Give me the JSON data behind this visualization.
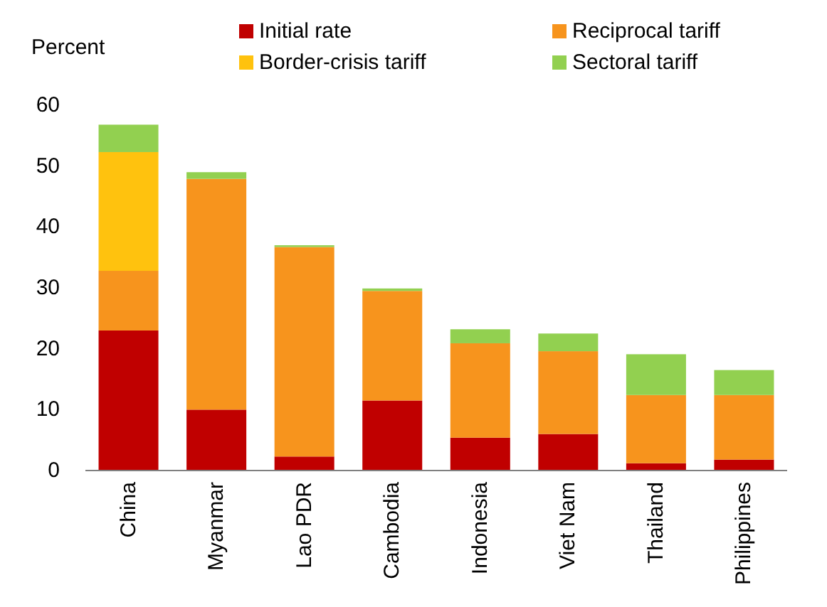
{
  "chart_data": {
    "type": "bar",
    "stacked": true,
    "ylabel": "Percent",
    "categories": [
      "China",
      "Myanmar",
      "Lao PDR",
      "Cambodia",
      "Indonesia",
      "Viet Nam",
      "Thailand",
      "Philippines"
    ],
    "series": [
      {
        "name": "Initial rate",
        "color": "#c00000",
        "values": [
          23.0,
          10.0,
          2.3,
          11.5,
          5.4,
          6.0,
          1.2,
          1.8
        ]
      },
      {
        "name": "Reciprocal tariff",
        "color": "#f7941d",
        "values": [
          9.8,
          37.9,
          34.4,
          18.0,
          15.5,
          13.6,
          11.2,
          10.6
        ]
      },
      {
        "name": "Border-crisis tariff",
        "color": "#ffc20e",
        "values": [
          19.5,
          0,
          0,
          0,
          0,
          0,
          0,
          0
        ]
      },
      {
        "name": "Sectoral tariff",
        "color": "#92d050",
        "values": [
          4.5,
          1.1,
          0.3,
          0.4,
          2.3,
          2.9,
          6.7,
          4.1
        ]
      }
    ],
    "ylim": [
      0,
      60
    ],
    "yticks": [
      0,
      10,
      20,
      30,
      40,
      50,
      60
    ],
    "legend": "top"
  }
}
